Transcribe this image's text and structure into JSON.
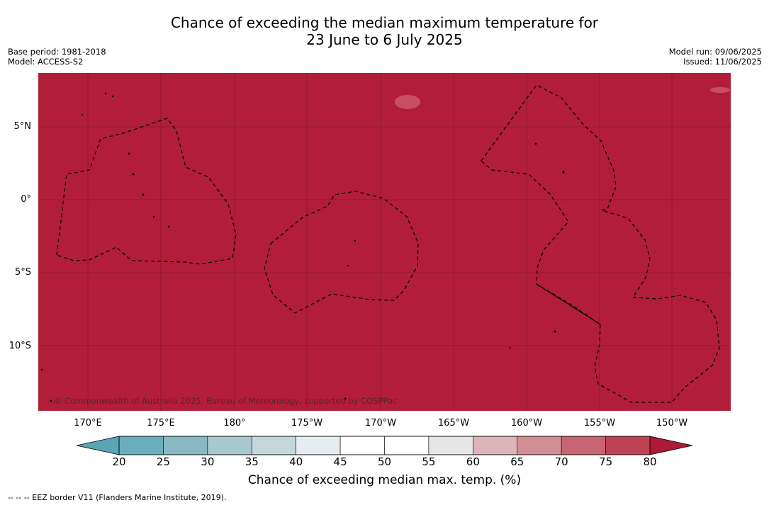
{
  "title": {
    "line1": "Chance of exceeding the median maximum temperature for",
    "line2": "23 June to 6 July 2025"
  },
  "meta_left": {
    "base_period": "Base period: 1981-2018",
    "model": "Model: ACCESS-S2"
  },
  "meta_right": {
    "model_run": "Model run: 09/06/2025",
    "issued": "Issued: 11/06/2025"
  },
  "map": {
    "fill_color": "#b21e39",
    "copyright": "© Commonwealth of Australia 2025, Bureau of Meteorology, supported by COSPPac",
    "lat_labels": [
      "5°N",
      "0°",
      "5°S",
      "10°S"
    ],
    "lon_labels": [
      "170°E",
      "175°E",
      "180°",
      "175°W",
      "170°W",
      "165°W",
      "160°W",
      "155°W",
      "150°W"
    ]
  },
  "colorbar": {
    "ticks": [
      "20",
      "25",
      "30",
      "35",
      "40",
      "45",
      "50",
      "55",
      "60",
      "65",
      "70",
      "75",
      "80"
    ],
    "colors": [
      "#6aaebd",
      "#88b8c4",
      "#a7c8cd",
      "#c4d8dc",
      "#e6edf0",
      "#ffffff",
      "#ffffff",
      "#e6e6e6",
      "#ddb4ba",
      "#d28d95",
      "#c76672",
      "#bd4353"
    ],
    "under_color": "#5aa5b4",
    "over_color": "#ad1a35",
    "label": "Chance of exceeding median max. temp. (%)"
  },
  "footnote": "--  --  -- EEZ border V11 (Flanders Marine Institute, 2019)."
}
